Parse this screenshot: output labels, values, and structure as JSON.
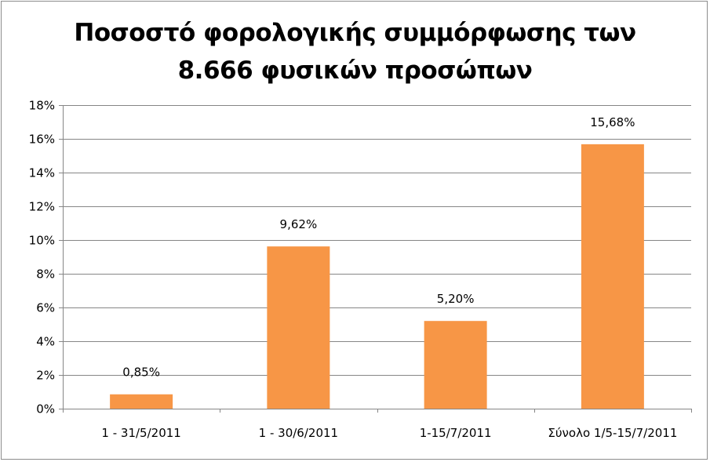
{
  "chart_data": {
    "type": "bar",
    "title_lines": [
      "Ποσοστό φορολογικής συμμόρφωσης των",
      "8.666 φυσικών προσώπων"
    ],
    "categories": [
      "1 - 31/5/2011",
      "1 - 30/6/2011",
      "1-15/7/2011",
      "Σύνολο 1/5-15/7/2011"
    ],
    "values": [
      0.85,
      9.62,
      5.2,
      15.68
    ],
    "data_labels": [
      "0,85%",
      "9,62%",
      "5,20%",
      "15,68%"
    ],
    "ylim": [
      0,
      18
    ],
    "yticks": [
      0,
      2,
      4,
      6,
      8,
      10,
      12,
      14,
      16,
      18
    ],
    "ytick_labels": [
      "0%",
      "2%",
      "4%",
      "6%",
      "8%",
      "10%",
      "12%",
      "14%",
      "16%",
      "18%"
    ],
    "grid": true,
    "bar_color": "#F79646",
    "grid_color": "#868686"
  }
}
